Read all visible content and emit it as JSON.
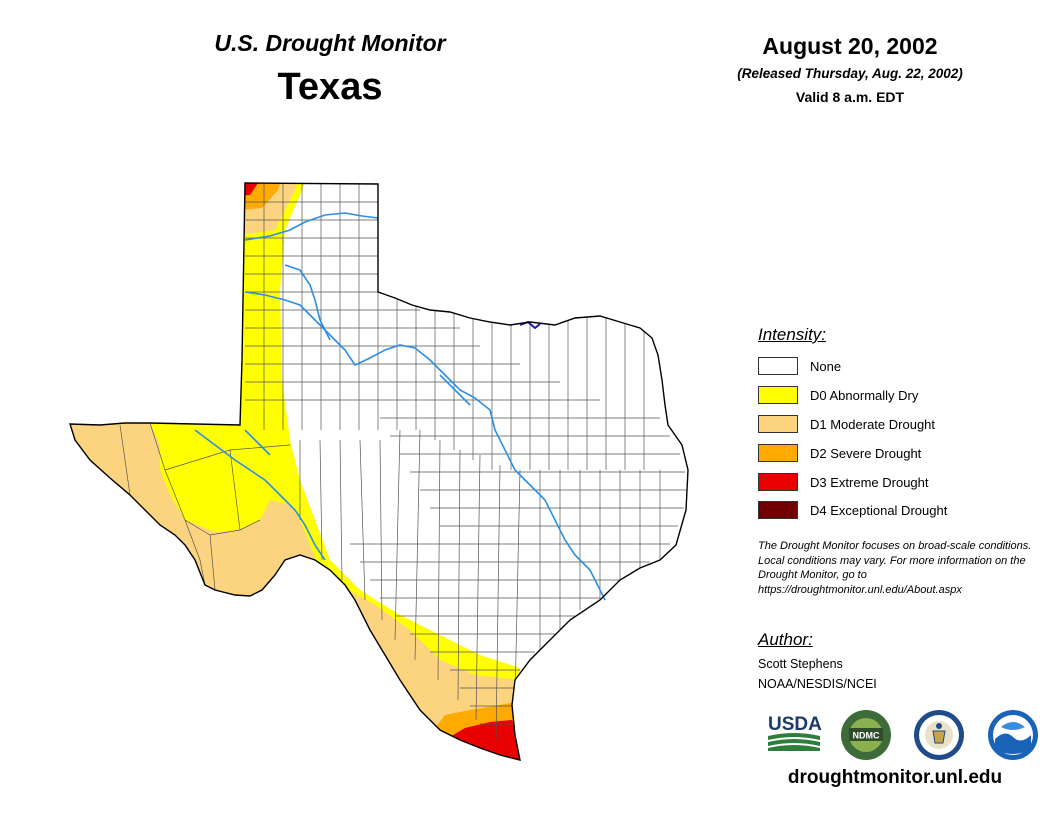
{
  "header": {
    "product": "U.S. Drought Monitor",
    "region": "Texas",
    "date": "August 20, 2002",
    "released": "(Released Thursday, Aug. 22, 2002)",
    "valid": "Valid 8 a.m. EDT"
  },
  "legend": {
    "heading": "Intensity:",
    "items": [
      {
        "label": "None",
        "color": "#ffffff"
      },
      {
        "label": "D0 Abnormally Dry",
        "color": "#ffff00"
      },
      {
        "label": "D1 Moderate Drought",
        "color": "#fcd37f"
      },
      {
        "label": "D2 Severe Drought",
        "color": "#ffaa00"
      },
      {
        "label": "D3 Extreme Drought",
        "color": "#e60000"
      },
      {
        "label": "D4 Exceptional Drought",
        "color": "#730000"
      }
    ]
  },
  "disclaimer": "The Drought Monitor focuses on broad-scale conditions. Local conditions may vary. For more information on the Drought Monitor, go to https://droughtmonitor.unl.edu/About.aspx",
  "author": {
    "heading": "Author:",
    "name": "Scott Stephens",
    "org": "NOAA/NESDIS/NCEI"
  },
  "logos": {
    "usda": "USDA",
    "ndmc": "NDMC"
  },
  "website": "droughtmonitor.unl.edu",
  "colors": {
    "river": "#2b8ee6",
    "county_line": "#555555",
    "state_outline": "#000000"
  }
}
